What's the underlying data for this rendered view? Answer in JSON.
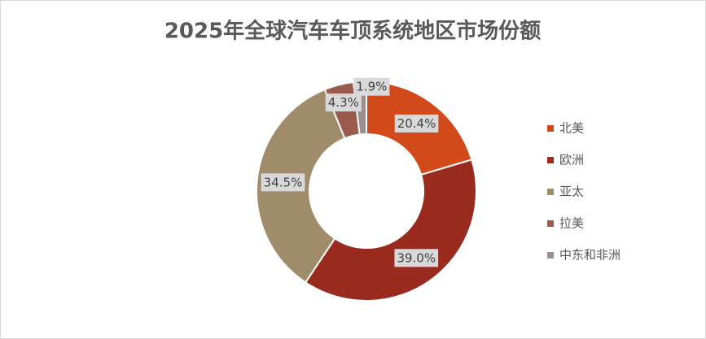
{
  "chart_data": {
    "type": "donut",
    "title": "2025年全球汽车车顶系统地区市场份额",
    "categories": [
      "北美",
      "欧洲",
      "亚太",
      "拉美",
      "中东和非洲"
    ],
    "values": [
      20.4,
      39.0,
      34.5,
      4.3,
      1.9
    ],
    "value_labels": [
      "20.4%",
      "39.0%",
      "34.5%",
      "4.3%",
      "1.9%"
    ],
    "colors": [
      "#d24a1a",
      "#9b2a1e",
      "#a08c6a",
      "#9a5a4c",
      "#9a8e8e"
    ],
    "legend": "right"
  }
}
